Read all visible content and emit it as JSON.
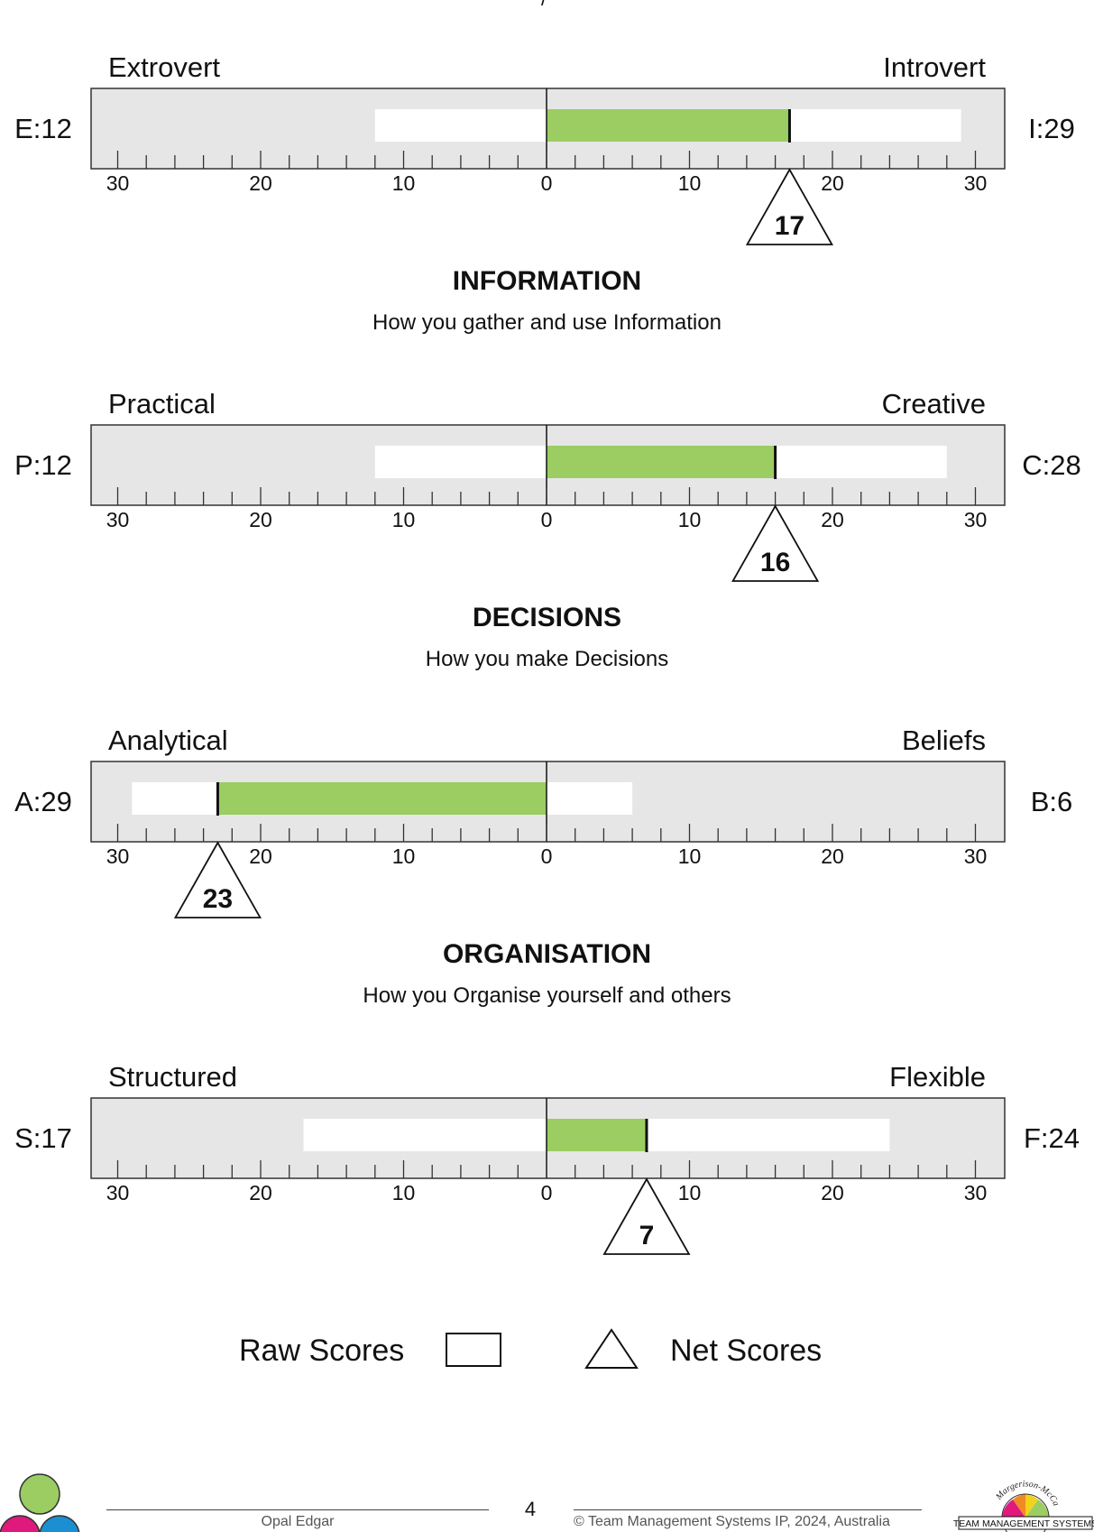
{
  "page_top_fragment": "/",
  "sections": [
    {
      "heading": "",
      "subtitle": ""
    },
    {
      "heading": "INFORMATION",
      "subtitle": "How you gather and use Information"
    },
    {
      "heading": "DECISIONS",
      "subtitle": "How you make Decisions"
    },
    {
      "heading": "ORGANISATION",
      "subtitle": "How you Organise yourself and others"
    }
  ],
  "chart_data": [
    {
      "type": "bar",
      "left_pole": "Extrovert",
      "right_pole": "Introvert",
      "left_score_label": "E:12",
      "right_score_label": "I:29",
      "left_raw": 12,
      "right_raw": 29,
      "net_score": 17,
      "net_direction": "right",
      "tick_labels": [
        "30",
        "20",
        "10",
        "0",
        "10",
        "20",
        "30"
      ],
      "xlim": [
        -30,
        30
      ]
    },
    {
      "type": "bar",
      "left_pole": "Practical",
      "right_pole": "Creative",
      "left_score_label": "P:12",
      "right_score_label": "C:28",
      "left_raw": 12,
      "right_raw": 28,
      "net_score": 16,
      "net_direction": "right",
      "tick_labels": [
        "30",
        "20",
        "10",
        "0",
        "10",
        "20",
        "30"
      ],
      "xlim": [
        -30,
        30
      ]
    },
    {
      "type": "bar",
      "left_pole": "Analytical",
      "right_pole": "Beliefs",
      "left_score_label": "A:29",
      "right_score_label": "B:6",
      "left_raw": 29,
      "right_raw": 6,
      "net_score": 23,
      "net_direction": "left",
      "tick_labels": [
        "30",
        "20",
        "10",
        "0",
        "10",
        "20",
        "30"
      ],
      "xlim": [
        -30,
        30
      ]
    },
    {
      "type": "bar",
      "left_pole": "Structured",
      "right_pole": "Flexible",
      "left_score_label": "S:17",
      "right_score_label": "F:24",
      "left_raw": 17,
      "right_raw": 24,
      "net_score": 7,
      "net_direction": "right",
      "tick_labels": [
        "30",
        "20",
        "10",
        "0",
        "10",
        "20",
        "30"
      ],
      "xlim": [
        -30,
        30
      ]
    }
  ],
  "legend": {
    "raw_label": "Raw Scores",
    "net_label": "Net Scores"
  },
  "footer": {
    "name": "Opal Edgar",
    "page_number": "4",
    "copyright": "© Team Management Systems IP, 2024, Australia",
    "logo_arc_text": "Margerison-McCann",
    "logo_text": "TEAM MANAGEMENT SYSTEMS"
  },
  "colors": {
    "track": "#e6e6e7",
    "raw": "#ffffff",
    "net": "#9bcd63",
    "ink": "#111111",
    "dot_green": "#9bcd63",
    "dot_magenta": "#e0197d",
    "dot_blue": "#1b8fd2"
  }
}
